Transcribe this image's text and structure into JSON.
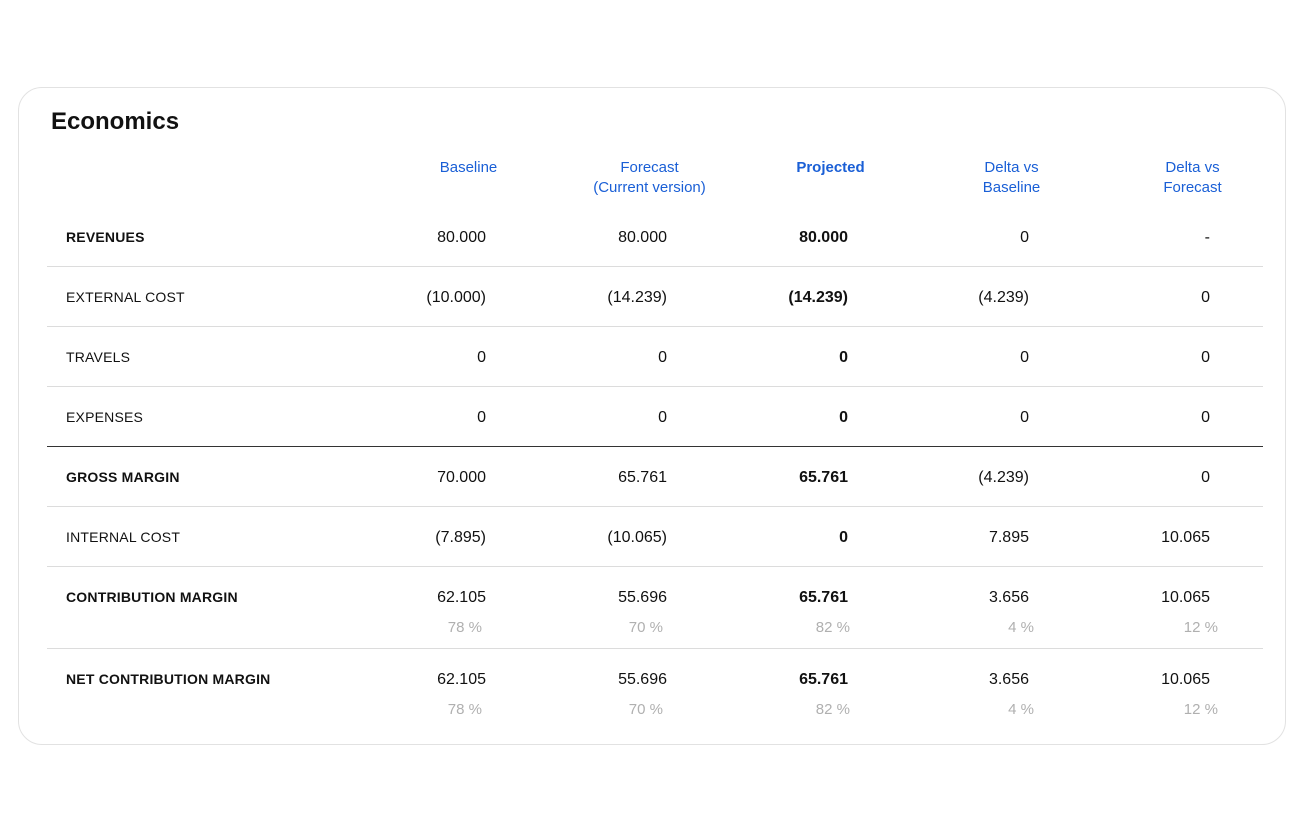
{
  "card": {
    "title": "Economics"
  },
  "columns": [
    {
      "label": "Baseline",
      "bold": false
    },
    {
      "label": "Forecast\n(Current version)",
      "bold": false
    },
    {
      "label": "Projected",
      "bold": true
    },
    {
      "label": "Delta vs\nBaseline",
      "bold": false
    },
    {
      "label": "Delta vs\nForecast",
      "bold": false
    }
  ],
  "rows": [
    {
      "label": "REVENUES",
      "bold": true,
      "values": [
        "80.000",
        "80.000",
        "80.000",
        "0",
        "-"
      ],
      "percents": null
    },
    {
      "label": "EXTERNAL COST",
      "bold": false,
      "values": [
        "(10.000)",
        "(14.239)",
        "(14.239)",
        "(4.239)",
        "0"
      ],
      "percents": null
    },
    {
      "label": "TRAVELS",
      "bold": false,
      "values": [
        "0",
        "0",
        "0",
        "0",
        "0"
      ],
      "percents": null
    },
    {
      "label": "EXPENSES",
      "bold": false,
      "values": [
        "0",
        "0",
        "0",
        "0",
        "0"
      ],
      "percents": null
    },
    {
      "label": "GROSS MARGIN",
      "bold": true,
      "values": [
        "70.000",
        "65.761",
        "65.761",
        "(4.239)",
        "0"
      ],
      "percents": null
    },
    {
      "label": "INTERNAL COST",
      "bold": false,
      "values": [
        "(7.895)",
        "(10.065)",
        "0",
        "7.895",
        "10.065"
      ],
      "percents": null
    },
    {
      "label": "CONTRIBUTION MARGIN",
      "bold": true,
      "values": [
        "62.105",
        "55.696",
        "65.761",
        "3.656",
        "10.065"
      ],
      "percents": [
        "78 %",
        "70 %",
        "82 %",
        "4 %",
        "12 %"
      ]
    },
    {
      "label": "NET CONTRIBUTION MARGIN",
      "bold": true,
      "values": [
        "62.105",
        "55.696",
        "65.761",
        "3.656",
        "10.065"
      ],
      "percents": [
        "78 %",
        "70 %",
        "82 %",
        "4 %",
        "12 %"
      ]
    }
  ],
  "colors": {
    "header": "#1a5fd6",
    "percent": "#b0b0b0",
    "divider": "#dcdcdc",
    "strong_divider": "#333333"
  }
}
